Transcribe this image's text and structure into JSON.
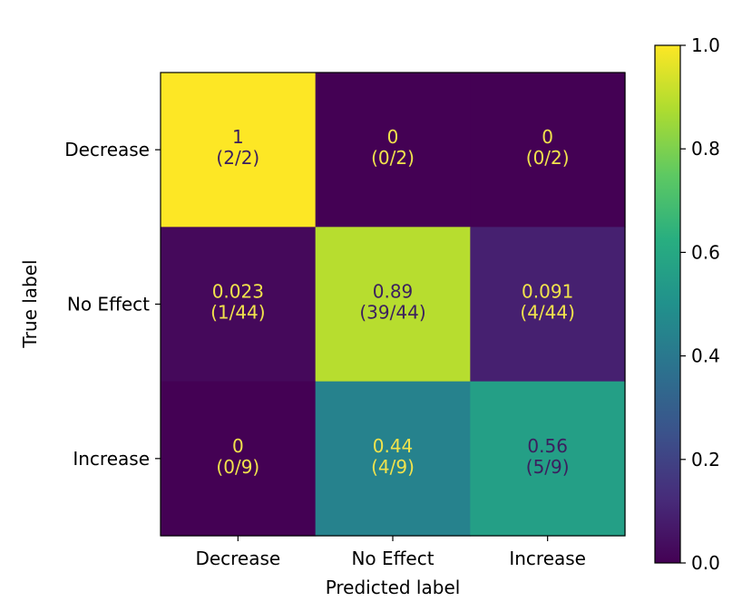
{
  "chart_data": {
    "type": "heatmap",
    "title": "",
    "xlabel": "Predicted label",
    "ylabel": "True label",
    "x_categories": [
      "Decrease",
      "No Effect",
      "Increase"
    ],
    "y_categories": [
      "Decrease",
      "No Effect",
      "Increase"
    ],
    "values": [
      [
        1,
        0,
        0
      ],
      [
        0.023,
        0.89,
        0.091
      ],
      [
        0,
        0.44,
        0.56
      ]
    ],
    "value_labels": [
      [
        "1",
        "0",
        "0"
      ],
      [
        "0.023",
        "0.89",
        "0.091"
      ],
      [
        "0",
        "0.44",
        "0.56"
      ]
    ],
    "count_labels": [
      [
        "(2/2)",
        "(0/2)",
        "(0/2)"
      ],
      [
        "(1/44)",
        "(39/44)",
        "(4/44)"
      ],
      [
        "(0/9)",
        "(4/9)",
        "(5/9)"
      ]
    ],
    "colormap": "viridis",
    "colorbar": {
      "range": [
        0.0,
        1.0
      ],
      "ticks": [
        0.0,
        0.2,
        0.4,
        0.6,
        0.8,
        1.0
      ],
      "tick_labels": [
        "0.0",
        "0.2",
        "0.4",
        "0.6",
        "0.8",
        "1.0"
      ]
    },
    "text_colors": {
      "on_dark": "#f1e34c",
      "on_light": "#3b1f5e"
    }
  }
}
